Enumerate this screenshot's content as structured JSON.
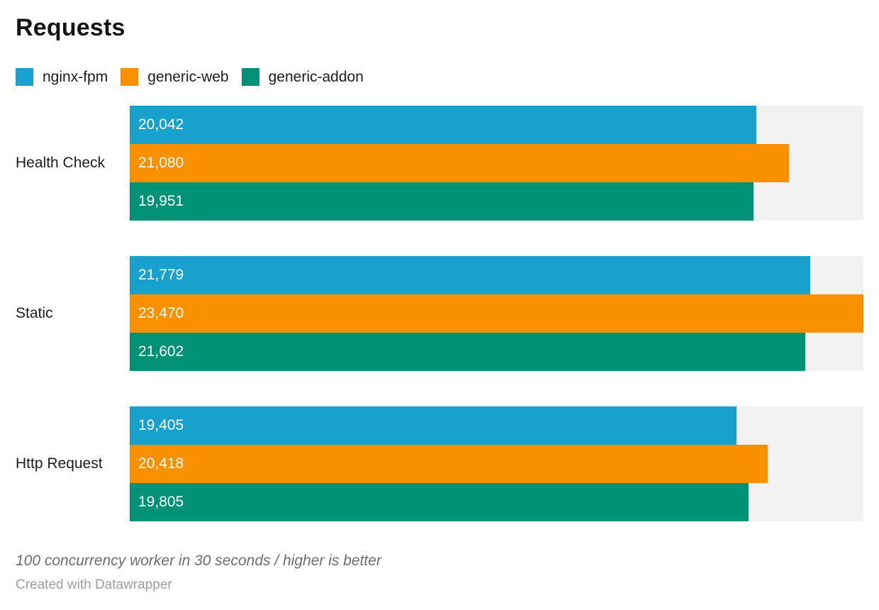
{
  "title": "Requests",
  "chart_data": {
    "type": "bar",
    "orientation": "horizontal",
    "title": "Requests",
    "categories": [
      "Health Check",
      "Static",
      "Http Request"
    ],
    "series": [
      {
        "name": "nginx-fpm",
        "color": "#18a1cd",
        "values": [
          20042,
          21779,
          19405
        ]
      },
      {
        "name": "generic-web",
        "color": "#f89000",
        "values": [
          21080,
          23470,
          20418
        ]
      },
      {
        "name": "generic-addon",
        "color": "#009276",
        "values": [
          19951,
          21602,
          19805
        ]
      }
    ],
    "value_label_format": "thousands-comma",
    "xlim": [
      0,
      23470
    ],
    "grid": false,
    "legend_position": "top",
    "track_color": "#f2f2f2"
  },
  "footer": {
    "notes": "100 concurrency worker in 30 seconds / higher is better",
    "attribution": "Created with Datawrapper"
  },
  "colors": {
    "title_text": "#141414",
    "label_text": "#1d1d1d",
    "bar_value_text": "#ffffff",
    "notes_text": "#6d6d6d",
    "attribution_text": "#9d9d9d",
    "bar_track": "#f2f2f2"
  }
}
